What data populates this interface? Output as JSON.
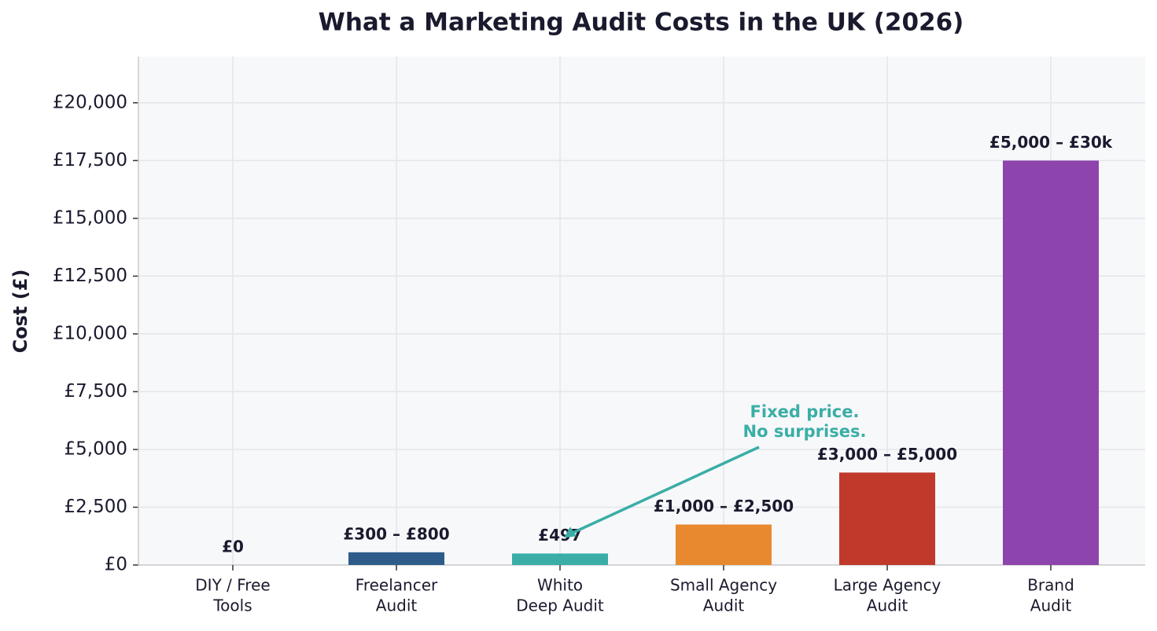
{
  "chart_data": {
    "type": "bar",
    "title": "What a Marketing Audit Costs in the UK (2026)",
    "y_label": "Cost (£)",
    "categories": [
      [
        "DIY / Free",
        "Tools"
      ],
      [
        "Freelancer",
        "Audit"
      ],
      [
        "Whito",
        "Deep Audit"
      ],
      [
        "Small Agency",
        "Audit"
      ],
      [
        "Large Agency",
        "Audit"
      ],
      [
        "Brand",
        "Audit"
      ]
    ],
    "values": [
      0,
      550,
      497,
      1750,
      4000,
      17500
    ],
    "value_labels": [
      "£0",
      "£300 – £800",
      "£497",
      "£1,000 – £2,500",
      "£3,000 – £5,000",
      "£5,000 – £30k"
    ],
    "colors": [
      "#95a5a6",
      "#2e5c8a",
      "#3aaea6",
      "#e8892f",
      "#c0392b",
      "#8e44ad"
    ],
    "ylim": [
      0,
      22000
    ],
    "yticks": [
      {
        "value": 0,
        "label": "£0"
      },
      {
        "value": 2500,
        "label": "£2,500"
      },
      {
        "value": 5000,
        "label": "£5,000"
      },
      {
        "value": 7500,
        "label": "£7,500"
      },
      {
        "value": 10000,
        "label": "£10,000"
      },
      {
        "value": 12500,
        "label": "£12,500"
      },
      {
        "value": 15000,
        "label": "£15,000"
      },
      {
        "value": 17500,
        "label": "£17,500"
      },
      {
        "value": 20000,
        "label": "£20,000"
      }
    ],
    "grid": true,
    "annotation": {
      "lines": [
        "Fixed price.",
        "No surprises."
      ],
      "color": "#3aaea6"
    }
  }
}
